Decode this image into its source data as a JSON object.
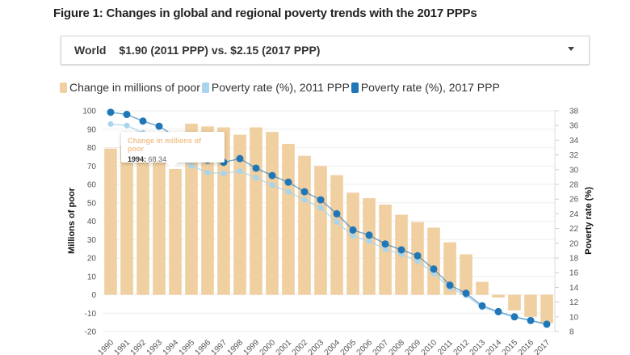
{
  "title": "Figure 1: Changes in global and regional poverty trends with the 2017 PPPs",
  "dropdown": {
    "region": "World",
    "selection": "$1.90 (2011 PPP) vs. $2.15 (2017 PPP)"
  },
  "tooltip": {
    "series": "Change in millions of poor",
    "year": "1994:",
    "value": "68.34"
  },
  "colors": {
    "bars": "#f0cfa0",
    "rate2011": "#a8d4ec",
    "rate2017": "#1f77b8",
    "tooltip_title": "#f1c48f"
  },
  "chart_data": {
    "type": "bar+line",
    "legend_position": "top-left",
    "grid": true,
    "legend": [
      "Change in millions of poor",
      "Poverty rate (%), 2011 PPP",
      "Poverty rate (%), 2017 PPP"
    ],
    "ylabel": "Millions of poor",
    "y2label": "Poverty rate (%)",
    "ylim": [
      -20,
      100
    ],
    "y2lim": [
      8,
      38
    ],
    "yticks": [
      "100",
      "90",
      "80",
      "70",
      "60",
      "50",
      "40",
      "30",
      "20",
      "10",
      "0",
      "-10",
      "-20"
    ],
    "y2ticks": [
      "38",
      "36",
      "34",
      "32",
      "30",
      "28",
      "26",
      "24",
      "22",
      "20",
      "18",
      "16",
      "14",
      "12",
      "10",
      "8"
    ],
    "categories": [
      "1990",
      "1991",
      "1992",
      "1993",
      "1994",
      "1995",
      "1996",
      "1997",
      "1998",
      "1999",
      "2000",
      "2001",
      "2002",
      "2003",
      "2004",
      "2005",
      "2006",
      "2007",
      "2008",
      "2009",
      "2010",
      "2011",
      "2012",
      "2013",
      "2014",
      "2015",
      "2016",
      "2017"
    ],
    "series": [
      {
        "name": "Change in millions of poor",
        "type": "bar",
        "axis": "left",
        "values": [
          79.5,
          81,
          84,
          82,
          68.34,
          93,
          91.5,
          91,
          87,
          91,
          88.5,
          82,
          75.5,
          70,
          65,
          55.5,
          52.5,
          49,
          43.5,
          39.5,
          36.5,
          28.5,
          22,
          7,
          -1.5,
          -8.5,
          -12,
          -15.5
        ]
      },
      {
        "name": "Poverty rate (%), 2011 PPP",
        "type": "line",
        "axis": "right",
        "values": [
          36.2,
          36.0,
          35.0,
          33.5,
          32.0,
          30.5,
          29.6,
          29.5,
          29.8,
          28.9,
          27.9,
          27.0,
          25.9,
          24.8,
          22.9,
          21.0,
          20.3,
          19.2,
          18.5,
          17.6,
          15.9,
          13.9,
          12.9,
          11.3,
          10.6,
          10.0,
          9.5,
          9.0
        ]
      },
      {
        "name": "Poverty rate (%), 2017 PPP",
        "type": "line",
        "axis": "right",
        "values": [
          37.8,
          37.5,
          36.6,
          35.9,
          34.5,
          33.0,
          31.3,
          31.0,
          31.5,
          30.2,
          29.2,
          28.3,
          27.0,
          25.9,
          24.0,
          21.8,
          21.1,
          19.9,
          19.1,
          18.3,
          16.5,
          14.3,
          13.2,
          11.5,
          10.7,
          10.0,
          9.5,
          9.0
        ]
      }
    ]
  }
}
